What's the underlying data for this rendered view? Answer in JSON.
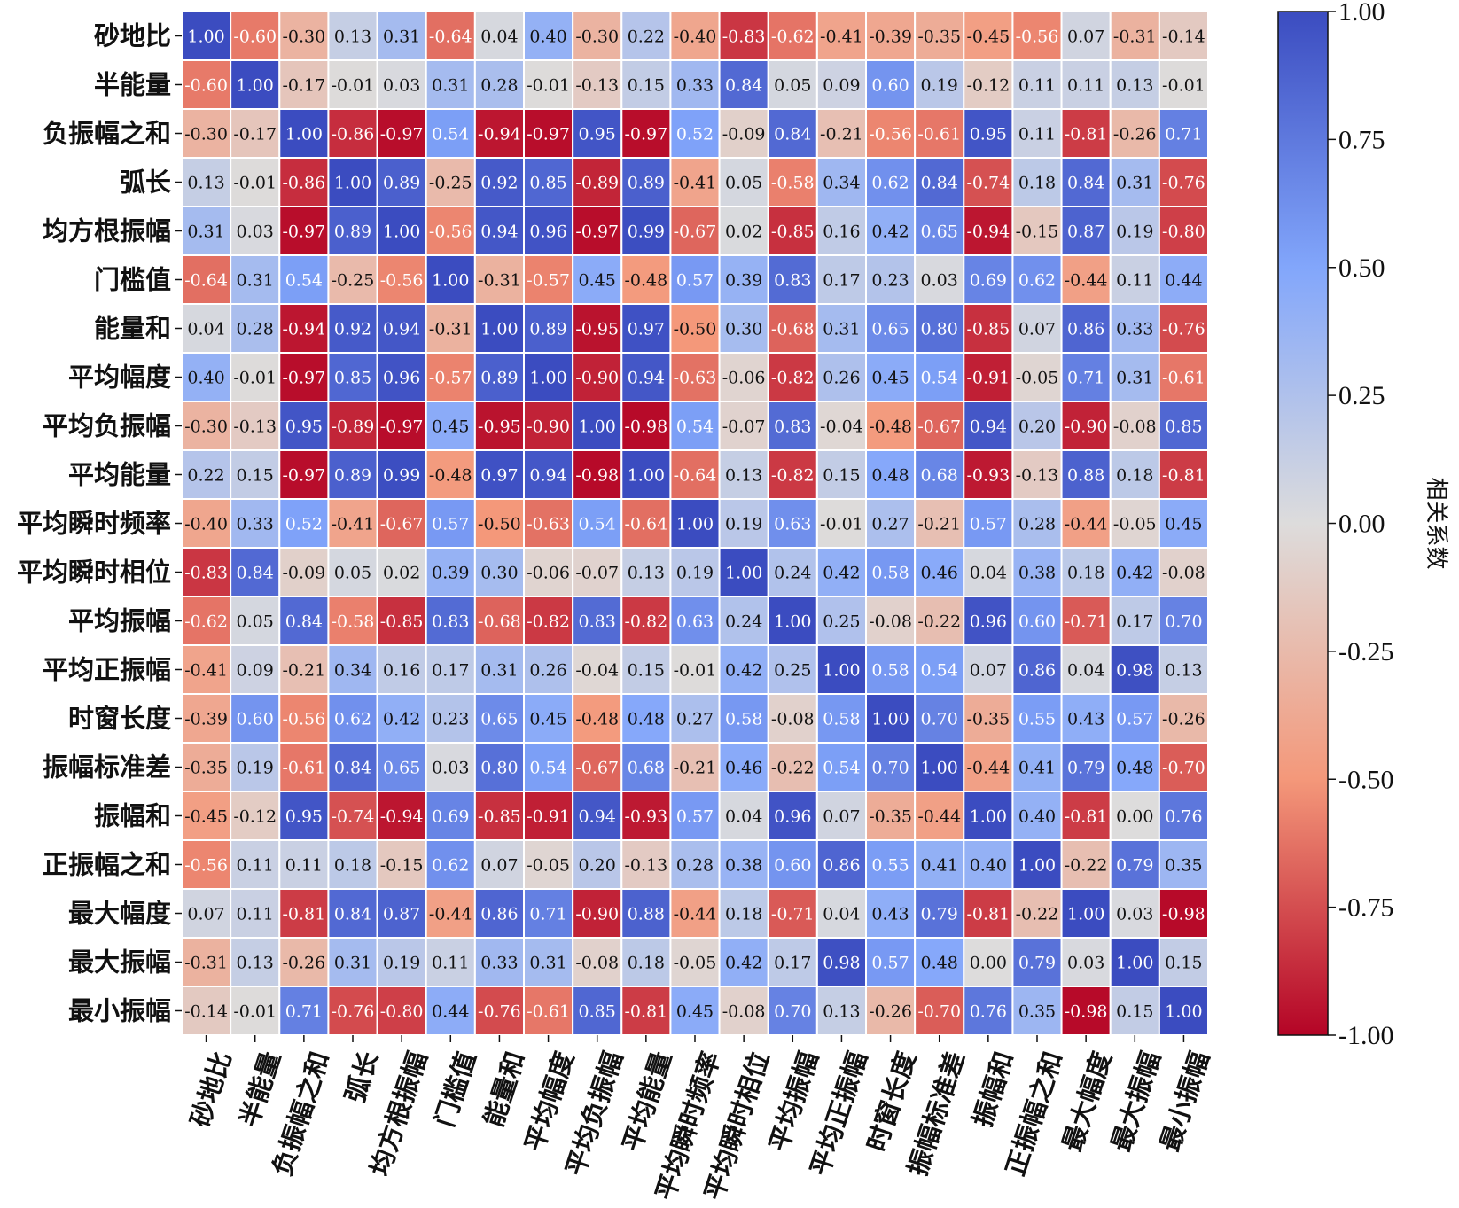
{
  "chart_data": {
    "type": "heatmap",
    "categories": [
      "砂地比",
      "半能量",
      "负振幅之和",
      "弧长",
      "均方根振幅",
      "门槛值",
      "能量和",
      "平均幅度",
      "平均负振幅",
      "平均能量",
      "平均瞬时频率",
      "平均瞬时相位",
      "平均振幅",
      "平均正振幅",
      "时窗长度",
      "振幅标准差",
      "振幅和",
      "正振幅之和",
      "最大幅度",
      "最大振幅",
      "最小振幅"
    ],
    "values": [
      [
        "1.00",
        "-0.60",
        "-0.30",
        "0.13",
        "0.31",
        "-0.64",
        "0.04",
        "0.40",
        "-0.30",
        "0.22",
        "-0.40",
        "-0.83",
        "-0.62",
        "-0.41",
        "-0.39",
        "-0.35",
        "-0.45",
        "-0.56",
        "0.07",
        "-0.31",
        "-0.14"
      ],
      [
        "-0.60",
        "1.00",
        "-0.17",
        "-0.01",
        "0.03",
        "0.31",
        "0.28",
        "-0.01",
        "-0.13",
        "0.15",
        "0.33",
        "0.84",
        "0.05",
        "0.09",
        "0.60",
        "0.19",
        "-0.12",
        "0.11",
        "0.11",
        "0.13",
        "-0.01"
      ],
      [
        "-0.30",
        "-0.17",
        "1.00",
        "-0.86",
        "-0.97",
        "0.54",
        "-0.94",
        "-0.97",
        "0.95",
        "-0.97",
        "0.52",
        "-0.09",
        "0.84",
        "-0.21",
        "-0.56",
        "-0.61",
        "0.95",
        "0.11",
        "-0.81",
        "-0.26",
        "0.71"
      ],
      [
        "0.13",
        "-0.01",
        "-0.86",
        "1.00",
        "0.89",
        "-0.25",
        "0.92",
        "0.85",
        "-0.89",
        "0.89",
        "-0.41",
        "0.05",
        "-0.58",
        "0.34",
        "0.62",
        "0.84",
        "-0.74",
        "0.18",
        "0.84",
        "0.31",
        "-0.76"
      ],
      [
        "0.31",
        "0.03",
        "-0.97",
        "0.89",
        "1.00",
        "-0.56",
        "0.94",
        "0.96",
        "-0.97",
        "0.99",
        "-0.67",
        "0.02",
        "-0.85",
        "0.16",
        "0.42",
        "0.65",
        "-0.94",
        "-0.15",
        "0.87",
        "0.19",
        "-0.80"
      ],
      [
        "-0.64",
        "0.31",
        "0.54",
        "-0.25",
        "-0.56",
        "1.00",
        "-0.31",
        "-0.57",
        "0.45",
        "-0.48",
        "0.57",
        "0.39",
        "0.83",
        "0.17",
        "0.23",
        "0.03",
        "0.69",
        "0.62",
        "-0.44",
        "0.11",
        "0.44"
      ],
      [
        "0.04",
        "0.28",
        "-0.94",
        "0.92",
        "0.94",
        "-0.31",
        "1.00",
        "0.89",
        "-0.95",
        "0.97",
        "-0.50",
        "0.30",
        "-0.68",
        "0.31",
        "0.65",
        "0.80",
        "-0.85",
        "0.07",
        "0.86",
        "0.33",
        "-0.76"
      ],
      [
        "0.40",
        "-0.01",
        "-0.97",
        "0.85",
        "0.96",
        "-0.57",
        "0.89",
        "1.00",
        "-0.90",
        "0.94",
        "-0.63",
        "-0.06",
        "-0.82",
        "0.26",
        "0.45",
        "0.54",
        "-0.91",
        "-0.05",
        "0.71",
        "0.31",
        "-0.61"
      ],
      [
        "-0.30",
        "-0.13",
        "0.95",
        "-0.89",
        "-0.97",
        "0.45",
        "-0.95",
        "-0.90",
        "1.00",
        "-0.98",
        "0.54",
        "-0.07",
        "0.83",
        "-0.04",
        "-0.48",
        "-0.67",
        "0.94",
        "0.20",
        "-0.90",
        "-0.08",
        "0.85"
      ],
      [
        "0.22",
        "0.15",
        "-0.97",
        "0.89",
        "0.99",
        "-0.48",
        "0.97",
        "0.94",
        "-0.98",
        "1.00",
        "-0.64",
        "0.13",
        "-0.82",
        "0.15",
        "0.48",
        "0.68",
        "-0.93",
        "-0.13",
        "0.88",
        "0.18",
        "-0.81"
      ],
      [
        "-0.40",
        "0.33",
        "0.52",
        "-0.41",
        "-0.67",
        "0.57",
        "-0.50",
        "-0.63",
        "0.54",
        "-0.64",
        "1.00",
        "0.19",
        "0.63",
        "-0.01",
        "0.27",
        "-0.21",
        "0.57",
        "0.28",
        "-0.44",
        "-0.05",
        "0.45"
      ],
      [
        "-0.83",
        "0.84",
        "-0.09",
        "0.05",
        "0.02",
        "0.39",
        "0.30",
        "-0.06",
        "-0.07",
        "0.13",
        "0.19",
        "1.00",
        "0.24",
        "0.42",
        "0.58",
        "0.46",
        "0.04",
        "0.38",
        "0.18",
        "0.42",
        "-0.08"
      ],
      [
        "-0.62",
        "0.05",
        "0.84",
        "-0.58",
        "-0.85",
        "0.83",
        "-0.68",
        "-0.82",
        "0.83",
        "-0.82",
        "0.63",
        "0.24",
        "1.00",
        "0.25",
        "-0.08",
        "-0.22",
        "0.96",
        "0.60",
        "-0.71",
        "0.17",
        "0.70"
      ],
      [
        "-0.41",
        "0.09",
        "-0.21",
        "0.34",
        "0.16",
        "0.17",
        "0.31",
        "0.26",
        "-0.04",
        "0.15",
        "-0.01",
        "0.42",
        "0.25",
        "1.00",
        "0.58",
        "0.54",
        "0.07",
        "0.86",
        "0.04",
        "0.98",
        "0.13"
      ],
      [
        "-0.39",
        "0.60",
        "-0.56",
        "0.62",
        "0.42",
        "0.23",
        "0.65",
        "0.45",
        "-0.48",
        "0.48",
        "0.27",
        "0.58",
        "-0.08",
        "0.58",
        "1.00",
        "0.70",
        "-0.35",
        "0.55",
        "0.43",
        "0.57",
        "-0.26"
      ],
      [
        "-0.35",
        "0.19",
        "-0.61",
        "0.84",
        "0.65",
        "0.03",
        "0.80",
        "0.54",
        "-0.67",
        "0.68",
        "-0.21",
        "0.46",
        "-0.22",
        "0.54",
        "0.70",
        "1.00",
        "-0.44",
        "0.41",
        "0.79",
        "0.48",
        "-0.70"
      ],
      [
        "-0.45",
        "-0.12",
        "0.95",
        "-0.74",
        "-0.94",
        "0.69",
        "-0.85",
        "-0.91",
        "0.94",
        "-0.93",
        "0.57",
        "0.04",
        "0.96",
        "0.07",
        "-0.35",
        "-0.44",
        "1.00",
        "0.40",
        "-0.81",
        "0.00",
        "0.76"
      ],
      [
        "-0.56",
        "0.11",
        "0.11",
        "0.18",
        "-0.15",
        "0.62",
        "0.07",
        "-0.05",
        "0.20",
        "-0.13",
        "0.28",
        "0.38",
        "0.60",
        "0.86",
        "0.55",
        "0.41",
        "0.40",
        "1.00",
        "-0.22",
        "0.79",
        "0.35"
      ],
      [
        "0.07",
        "0.11",
        "-0.81",
        "0.84",
        "0.87",
        "-0.44",
        "0.86",
        "0.71",
        "-0.90",
        "0.88",
        "-0.44",
        "0.18",
        "-0.71",
        "0.04",
        "0.43",
        "0.79",
        "-0.81",
        "-0.22",
        "1.00",
        "0.03",
        "-0.98"
      ],
      [
        "-0.31",
        "0.13",
        "-0.26",
        "0.31",
        "0.19",
        "0.11",
        "0.33",
        "0.31",
        "-0.08",
        "0.18",
        "-0.05",
        "0.42",
        "0.17",
        "0.98",
        "0.57",
        "0.48",
        "0.00",
        "0.79",
        "0.03",
        "1.00",
        "0.15"
      ],
      [
        "-0.14",
        "-0.01",
        "0.71",
        "-0.76",
        "-0.80",
        "0.44",
        "-0.76",
        "-0.61",
        "0.85",
        "-0.81",
        "0.45",
        "-0.08",
        "0.70",
        "0.13",
        "-0.26",
        "-0.70",
        "0.76",
        "0.35",
        "-0.98",
        "0.15",
        "1.00"
      ]
    ],
    "colorbar": {
      "label": "相关系数",
      "range": [
        -1,
        1
      ],
      "ticks": [
        "1.00",
        "0.75",
        "0.50",
        "0.25",
        "0.00",
        "-0.25",
        "-0.50",
        "-0.75",
        "-1.00"
      ],
      "colormap": "coolwarm_r",
      "stops": [
        {
          "v": -1.0,
          "color": "#b40426"
        },
        {
          "v": -0.5,
          "color": "#f4987a"
        },
        {
          "v": 0.0,
          "color": "#dddcdc"
        },
        {
          "v": 0.5,
          "color": "#82a6fb"
        },
        {
          "v": 1.0,
          "color": "#3b4cc0"
        }
      ]
    },
    "grid_lines": "white"
  }
}
